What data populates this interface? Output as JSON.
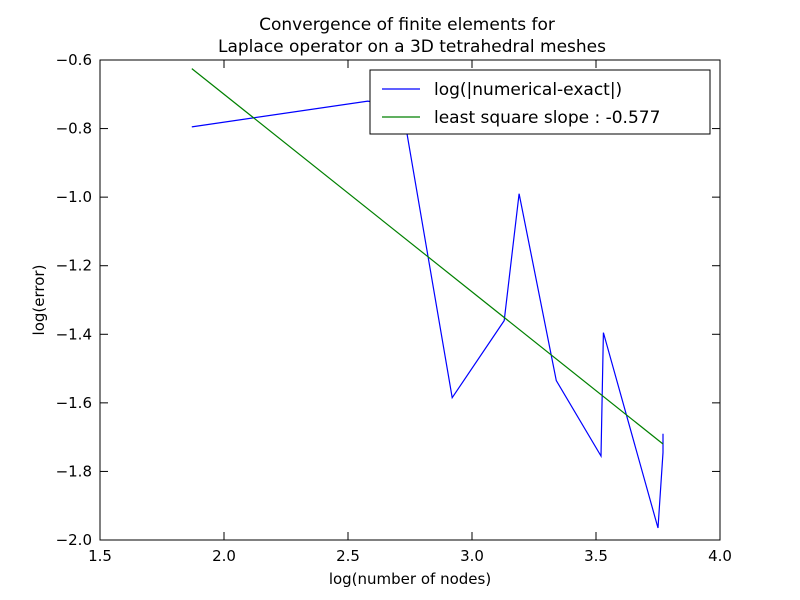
{
  "chart_data": {
    "type": "line",
    "title_lines": [
      "Convergence of finite elements for",
      "Laplace operator on a 3D tetrahedral meshes"
    ],
    "xlabel": "log(number of nodes)",
    "ylabel": "log(error)",
    "xlim": [
      1.5,
      4.0
    ],
    "ylim": [
      -2.0,
      -0.6
    ],
    "xticks": [
      1.5,
      2.0,
      2.5,
      3.0,
      3.5,
      4.0
    ],
    "xtick_labels": [
      "1.5",
      "2.0",
      "2.5",
      "3.0",
      "3.5",
      "4.0"
    ],
    "yticks": [
      -2.0,
      -1.8,
      -1.6,
      -1.4,
      -1.2,
      -1.0,
      -0.8,
      -0.6
    ],
    "ytick_labels": [
      "−2.0",
      "−1.8",
      "−1.6",
      "−1.4",
      "−1.2",
      "−1.0",
      "−0.8",
      "−0.6"
    ],
    "grid": false,
    "legend_position": "top-right",
    "series": [
      {
        "name": "log(|numerical-exact|)",
        "color": "#0000ff",
        "x": [
          1.87,
          2.58,
          2.72,
          2.92,
          3.13,
          3.19,
          3.34,
          3.52,
          3.53,
          3.75,
          3.77,
          3.77
        ],
        "y": [
          -0.795,
          -0.72,
          -0.74,
          -1.585,
          -1.36,
          -0.99,
          -1.535,
          -1.755,
          -1.395,
          -1.965,
          -1.745,
          -1.69
        ]
      },
      {
        "name": "least square slope : -0.577",
        "color": "#008000",
        "x": [
          1.87,
          3.77
        ],
        "y": [
          -0.625,
          -1.72
        ]
      }
    ]
  }
}
